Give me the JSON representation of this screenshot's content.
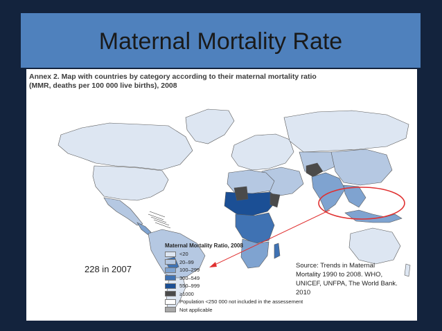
{
  "slide": {
    "title": "Maternal Mortality Rate",
    "annotation_left": "228 in 2007",
    "source_note": "Source: Trends in Maternal Mortality 1990 to 2008. WHO, UNICEF, UNFPA, The World Bank. 2010"
  },
  "figure": {
    "title_line1": "Annex 2. Map with countries by category according to their maternal mortality ratio",
    "title_line2": "(MMR, deaths per 100 000 live births), 2008"
  },
  "legend": {
    "title": "Maternal Mortality Ratio, 2008",
    "items": [
      {
        "label": "<20",
        "color": "#dde6f2"
      },
      {
        "label": "20–99",
        "color": "#b5c8e2"
      },
      {
        "label": "100–299",
        "color": "#7fa3d0"
      },
      {
        "label": "300–549",
        "color": "#3f72b3"
      },
      {
        "label": "550–999",
        "color": "#1b4f95"
      },
      {
        "label": "≥1000",
        "color": "#4a4a4a"
      },
      {
        "label": "Population <250 000 not included in the assessement",
        "color": "#ffffff"
      },
      {
        "label": "Not applicable",
        "color": "#a8a8a8"
      }
    ]
  },
  "colors": {
    "title_bar": "#4f81bd",
    "annotation": "#e03030"
  }
}
